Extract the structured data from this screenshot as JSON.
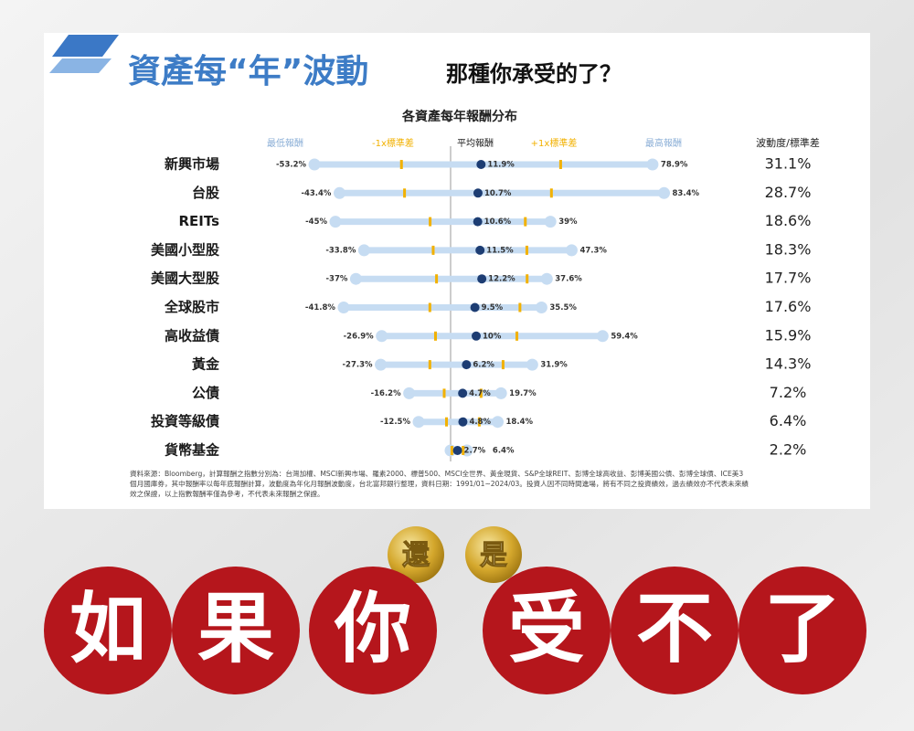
{
  "header": {
    "title": "資產每“年”波動",
    "subtitle": "那種你承受的了？"
  },
  "chart_data": {
    "type": "range",
    "title": "各資產每年報酬分布",
    "categories": [
      "新興市場",
      "台股",
      "REITs",
      "美國小型股",
      "美國大型股",
      "全球股市",
      "高收益債",
      "黃金",
      "公債",
      "投資等級債",
      "貨幣基金"
    ],
    "xlim": [
      -60,
      90
    ],
    "band_labels": [
      "-1x標準差",
      "+1x標準差"
    ],
    "band_color": "#f2b100",
    "series": [
      {
        "name": "最低報酬",
        "color": "#c6dcf2",
        "values": [
          -53.2,
          -43.4,
          -45,
          -33.8,
          -37,
          -41.8,
          -26.9,
          -27.3,
          -16.2,
          -12.5,
          0
        ],
        "value_labels": [
          "-53.2%",
          "-43.4%",
          "-45%",
          "-33.8%",
          "-37%",
          "-41.8%",
          "-26.9%",
          "-27.3%",
          "-16.2%",
          "-12.5%",
          null
        ]
      },
      {
        "name": "平均報酬",
        "color": "#1d3d73",
        "values": [
          11.9,
          10.7,
          10.6,
          11.5,
          12.2,
          9.5,
          10,
          6.2,
          4.7,
          4.8,
          2.7
        ],
        "value_labels": [
          "11.9%",
          "10.7%",
          "10.6%",
          "11.5%",
          "12.2%",
          "9.5%",
          "10%",
          "6.2%",
          "4.7%",
          "4.8%",
          "2.7%"
        ]
      },
      {
        "name": "最高報酬",
        "color": "#c6dcf2",
        "values": [
          78.9,
          83.4,
          39,
          47.3,
          37.6,
          35.5,
          59.4,
          31.9,
          19.7,
          18.4,
          6.4
        ],
        "value_labels": [
          "78.9%",
          "83.4%",
          "39%",
          "47.3%",
          "37.6%",
          "35.5%",
          "59.4%",
          "31.9%",
          "19.7%",
          "18.4%",
          "6.4%"
        ]
      },
      {
        "name": "波動度/標準差",
        "color": "#333333",
        "values": [
          31.1,
          28.7,
          18.6,
          18.3,
          17.7,
          17.6,
          15.9,
          14.3,
          7.2,
          6.4,
          2.2
        ],
        "value_labels": [
          "31.1%",
          "28.7%",
          "18.6%",
          "18.3%",
          "17.7%",
          "17.6%",
          "15.9%",
          "14.3%",
          "7.2%",
          "6.4%",
          "2.2%"
        ]
      }
    ],
    "source": [
      "資料來源：Bloomberg，計算報酬之指數分別為：台灣加權、MSCI新興市場、羅素2000、標普500、MSCI全世界、黃金現貨、S&P全球REIT、彭博全球高收益、彭博美國公債、彭博全球債、ICE美3",
      "個月國庫券，其中報酬率以每年底報酬計算，波動度為年化月報酬波動度，台北富邦銀行整理，資料日期：1991/01~2024/03。投資人因不同時間進場，將有不同之投資績效，過去績效亦不代表未來績",
      "效之保證，以上指數報酬率僅為參考，不代表未來報酬之保證。"
    ]
  },
  "banner": {
    "small": [
      "還",
      "是"
    ],
    "big": [
      "如",
      "果",
      "你",
      "受",
      "不",
      "了"
    ]
  }
}
